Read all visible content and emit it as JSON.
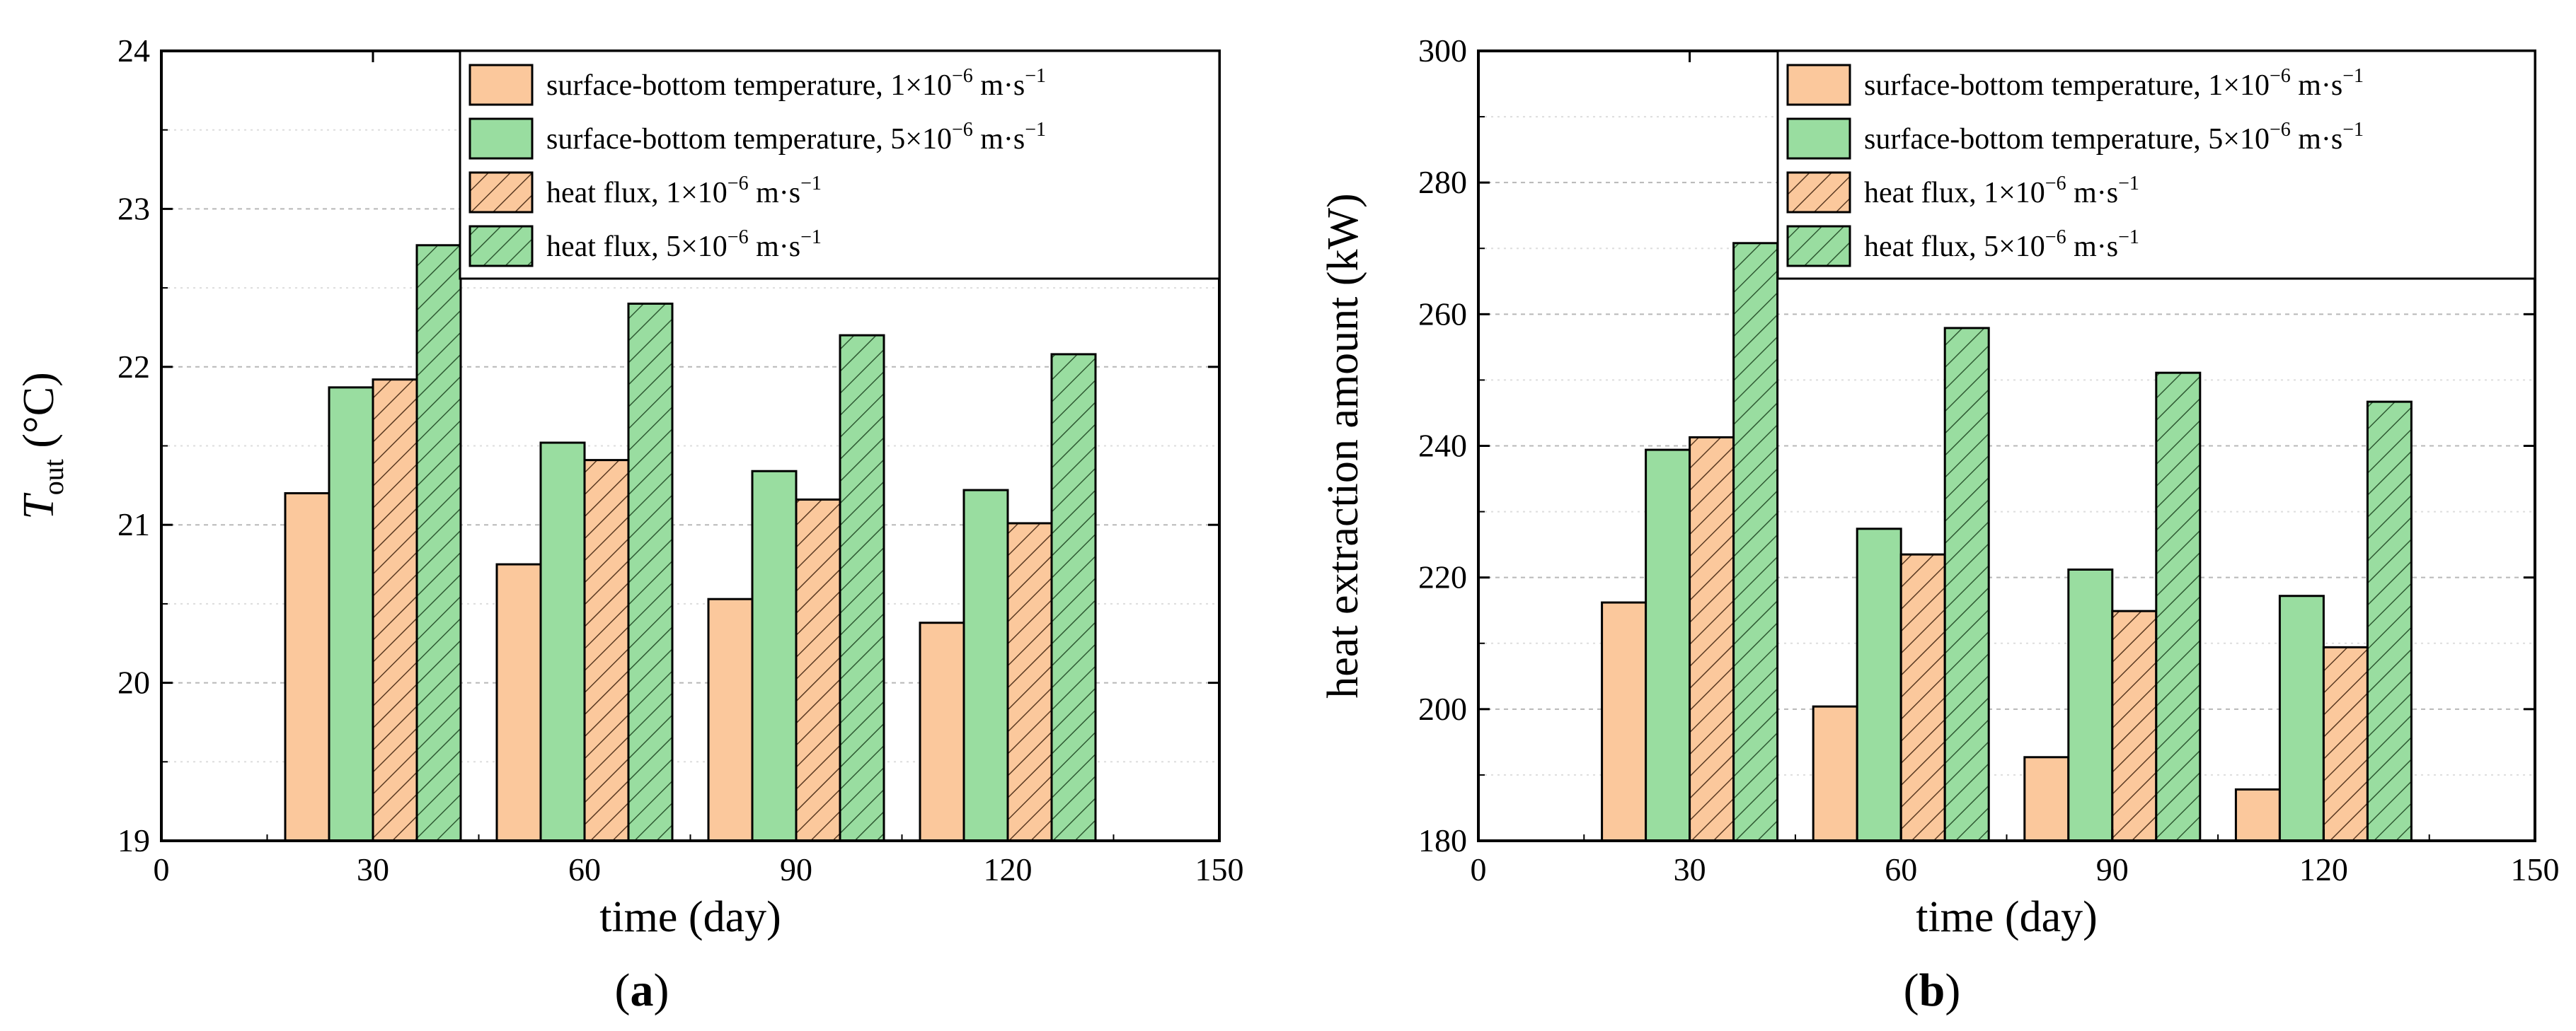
{
  "colors": {
    "orange": "#fbc89c",
    "green": "#99dda0",
    "edge": "#000000",
    "grid": "#c8c8c8"
  },
  "legend": [
    {
      "prefix": "surface-bottom temperature, ",
      "coef": "1",
      "fill": "orange",
      "hatched": false
    },
    {
      "prefix": "surface-bottom temperature, ",
      "coef": "5",
      "fill": "green",
      "hatched": false
    },
    {
      "prefix": "heat flux, ",
      "coef": "1",
      "fill": "orange",
      "hatched": true
    },
    {
      "prefix": "heat flux, ",
      "coef": "5",
      "fill": "green",
      "hatched": true
    }
  ],
  "units": {
    "times": "×10",
    "exp": "−6",
    "mid": " m·s",
    "exp2": "−1"
  },
  "chart_data": [
    {
      "type": "bar",
      "panel_label": "(a)",
      "panel_letter": "a",
      "xlabel": "time (day)",
      "ylabel_main": "T",
      "ylabel_sub": "out",
      "ylabel_unit": " (°C)",
      "xlim": [
        0,
        150
      ],
      "ylim": [
        19,
        24
      ],
      "xticks": [
        0,
        30,
        60,
        90,
        120,
        150
      ],
      "yticks": [
        19,
        20,
        21,
        22,
        23,
        24
      ],
      "categories": [
        30,
        60,
        90,
        120
      ],
      "series": [
        {
          "name": "surface-bottom temperature, 1×10−6 m·s−1",
          "values": [
            21.2,
            20.75,
            20.53,
            20.38
          ]
        },
        {
          "name": "surface-bottom temperature, 5×10−6 m·s−1",
          "values": [
            21.87,
            21.52,
            21.34,
            21.22
          ]
        },
        {
          "name": "heat flux, 1×10−6 m·s−1",
          "values": [
            21.92,
            21.41,
            21.16,
            21.01
          ]
        },
        {
          "name": "heat flux, 5×10−6 m·s−1",
          "values": [
            22.77,
            22.4,
            22.2,
            22.08
          ]
        }
      ]
    },
    {
      "type": "bar",
      "panel_label": "(b)",
      "panel_letter": "b",
      "xlabel": "time (day)",
      "ylabel_main": "heat extraction amount (kW)",
      "ylabel_sub": "",
      "ylabel_unit": "",
      "xlim": [
        0,
        150
      ],
      "ylim": [
        180,
        300
      ],
      "xticks": [
        0,
        30,
        60,
        90,
        120,
        150
      ],
      "yticks": [
        180,
        200,
        220,
        240,
        260,
        280,
        300
      ],
      "categories": [
        30,
        60,
        90,
        120
      ],
      "series": [
        {
          "name": "surface-bottom temperature, 1×10−6 m·s−1",
          "values": [
            216.2,
            200.4,
            192.7,
            187.8
          ]
        },
        {
          "name": "surface-bottom temperature, 5×10−6 m·s−1",
          "values": [
            239.4,
            227.4,
            221.2,
            217.2
          ]
        },
        {
          "name": "heat flux, 1×10−6 m·s−1",
          "values": [
            241.3,
            223.5,
            214.9,
            209.4
          ]
        },
        {
          "name": "heat flux, 5×10−6 m·s−1",
          "values": [
            270.8,
            257.9,
            251.1,
            246.7
          ]
        }
      ]
    }
  ]
}
